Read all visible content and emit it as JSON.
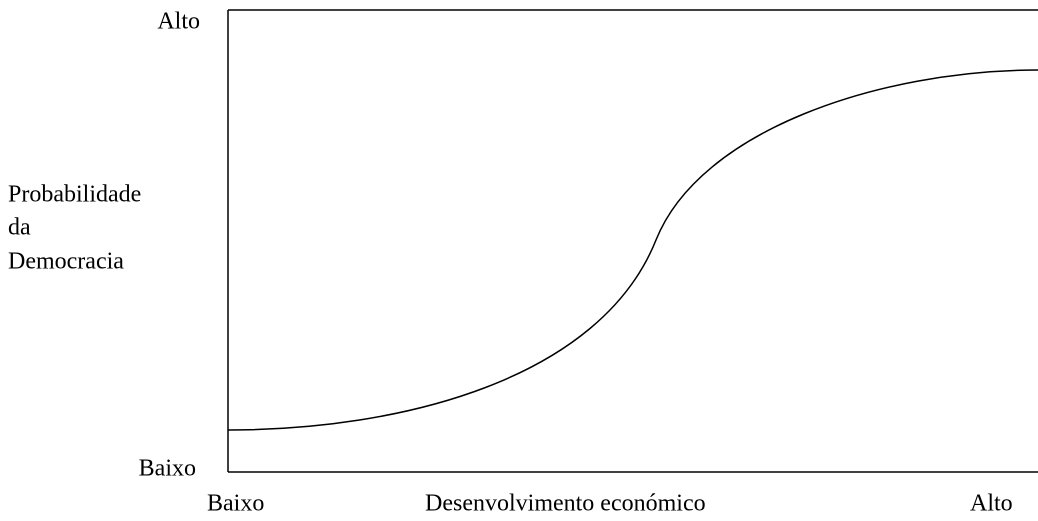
{
  "y_axis": {
    "high": "Alto",
    "label": [
      "Probabilidade",
      "da",
      "Democracia"
    ],
    "low": "Baixo"
  },
  "x_axis": {
    "low": "Baixo",
    "label": "Desenvolvimento económico",
    "high": "Alto"
  }
}
